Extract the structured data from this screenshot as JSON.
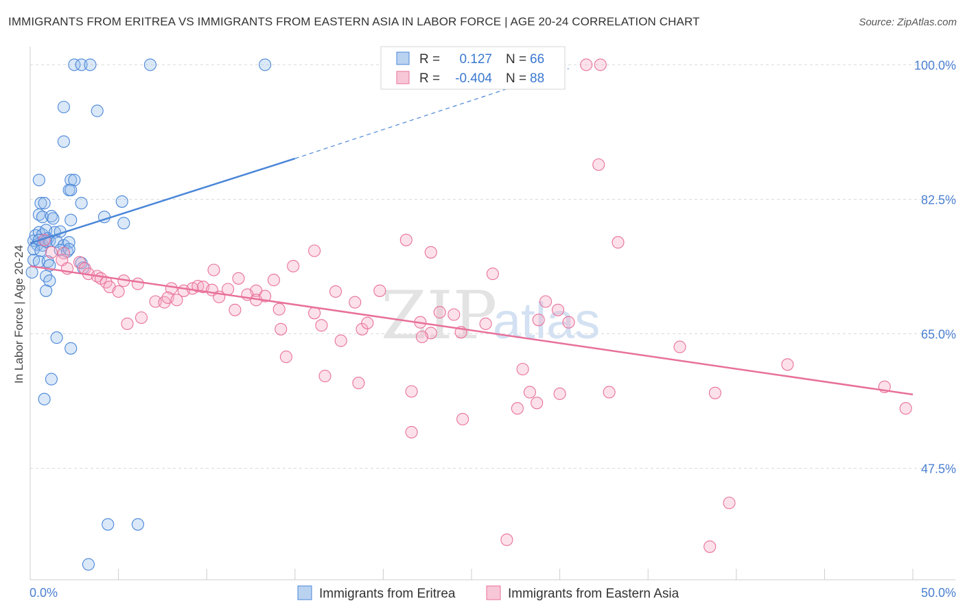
{
  "title": "IMMIGRANTS FROM ERITREA VS IMMIGRANTS FROM EASTERN ASIA IN LABOR FORCE | AGE 20-24 CORRELATION CHART",
  "source": "Source: ZipAtlas.com",
  "watermark": {
    "zip": "ZIP",
    "atlas": "atlas"
  },
  "legend_box": {
    "rows": [
      {
        "r_label": "R =",
        "r_value": "0.127",
        "n_label": "N =",
        "n_value": "66",
        "color": "#4a86d8"
      },
      {
        "r_label": "R =",
        "r_value": "-0.404",
        "n_label": "N =",
        "n_value": "88",
        "color": "#e8709a"
      }
    ]
  },
  "chart_data": {
    "type": "scatter",
    "ylabel": "In Labor Force | Age 20-24",
    "xlabel": "",
    "xlim": [
      0,
      50
    ],
    "ylim": [
      33,
      102
    ],
    "x_tick_labels": [
      {
        "value": 0,
        "label": "0.0%"
      },
      {
        "value": 50,
        "label": "50.0%"
      }
    ],
    "y_tick_labels": [
      {
        "value": 100,
        "label": "100.0%"
      },
      {
        "value": 82.5,
        "label": "82.5%"
      },
      {
        "value": 65,
        "label": "65.0%"
      },
      {
        "value": 47.5,
        "label": "47.5%"
      }
    ],
    "colors": {
      "eritrea": "#4a86d8",
      "eastern_asia": "#e8709a",
      "tick_label": "#4a7fd0"
    },
    "series": [
      {
        "name": "Immigrants from Eritrea",
        "color": "#4a86d8",
        "trend": {
          "x_start": 0,
          "y_start": 76.8,
          "x_end": 15,
          "y_end": 87.8,
          "dash_x_end": 30.5,
          "dash_y_end": 99.5
        },
        "points": [
          [
            2.5,
            100
          ],
          [
            2.9,
            100
          ],
          [
            3.4,
            100
          ],
          [
            6.8,
            100
          ],
          [
            13.3,
            100
          ],
          [
            1.9,
            94.5
          ],
          [
            3.8,
            94
          ],
          [
            1.9,
            90
          ],
          [
            0.5,
            85
          ],
          [
            2.3,
            85
          ],
          [
            2.5,
            85
          ],
          [
            2.2,
            83.7
          ],
          [
            2.3,
            83.7
          ],
          [
            0.6,
            82
          ],
          [
            0.8,
            82
          ],
          [
            2.9,
            82
          ],
          [
            5.2,
            82.2
          ],
          [
            0.5,
            80.5
          ],
          [
            0.7,
            80.2
          ],
          [
            1.2,
            80.3
          ],
          [
            1.3,
            80
          ],
          [
            2.3,
            79.8
          ],
          [
            4.2,
            80.2
          ],
          [
            5.3,
            79.4
          ],
          [
            0.3,
            77.8
          ],
          [
            0.5,
            78.2
          ],
          [
            0.7,
            77.9
          ],
          [
            0.9,
            78.5
          ],
          [
            1.0,
            77.4
          ],
          [
            1.4,
            78.2
          ],
          [
            1.7,
            78.3
          ],
          [
            0.2,
            77.1
          ],
          [
            0.4,
            76.6
          ],
          [
            0.5,
            77.2
          ],
          [
            0.7,
            76.5
          ],
          [
            0.9,
            77
          ],
          [
            1.1,
            77.1
          ],
          [
            1.5,
            77
          ],
          [
            1.9,
            76.5
          ],
          [
            2.2,
            76.9
          ],
          [
            0.2,
            76.0
          ],
          [
            0.6,
            75.8
          ],
          [
            1.7,
            75.9
          ],
          [
            2.1,
            75.7
          ],
          [
            2.2,
            76.0
          ],
          [
            0.2,
            74.6
          ],
          [
            0.5,
            74.4
          ],
          [
            1.0,
            74.4
          ],
          [
            1.1,
            73.9
          ],
          [
            2.9,
            74.2
          ],
          [
            3.0,
            73.6
          ],
          [
            0.1,
            73.0
          ],
          [
            0.9,
            72.5
          ],
          [
            1.1,
            71.9
          ],
          [
            0.9,
            70.6
          ],
          [
            1.5,
            64.5
          ],
          [
            2.3,
            63.1
          ],
          [
            1.2,
            59.1
          ],
          [
            0.8,
            56.5
          ],
          [
            4.4,
            40.2
          ],
          [
            6.1,
            40.2
          ],
          [
            3.3,
            35
          ]
        ]
      },
      {
        "name": "Immigrants from Eastern Asia",
        "color": "#e8709a",
        "trend": {
          "x_start": 0,
          "y_start": 73.8,
          "x_end": 50,
          "y_end": 57.1
        },
        "points": [
          [
            31.5,
            100
          ],
          [
            32.3,
            100
          ],
          [
            32.2,
            87
          ],
          [
            21.3,
            77.2
          ],
          [
            33.3,
            76.9
          ],
          [
            16.1,
            75.8
          ],
          [
            22.7,
            75.6
          ],
          [
            0.8,
            77.2
          ],
          [
            1.2,
            75.6
          ],
          [
            1.9,
            75.5
          ],
          [
            1.8,
            74.6
          ],
          [
            2.8,
            74.3
          ],
          [
            2.1,
            73.5
          ],
          [
            3.1,
            73.5
          ],
          [
            14.9,
            73.8
          ],
          [
            3.3,
            72.8
          ],
          [
            3.8,
            72.5
          ],
          [
            4.0,
            72.2
          ],
          [
            4.3,
            71.7
          ],
          [
            4.5,
            71.1
          ],
          [
            5.3,
            71.9
          ],
          [
            6.1,
            71.5
          ],
          [
            10.4,
            73.3
          ],
          [
            11.8,
            72.2
          ],
          [
            13.8,
            72
          ],
          [
            26.2,
            72.8
          ],
          [
            5.0,
            70.5
          ],
          [
            8.0,
            70.9
          ],
          [
            8.7,
            70.6
          ],
          [
            9.2,
            70.9
          ],
          [
            9.5,
            71.2
          ],
          [
            9.8,
            71.1
          ],
          [
            10.3,
            70.7
          ],
          [
            11.2,
            70.8
          ],
          [
            12.8,
            70.6
          ],
          [
            17.3,
            70.5
          ],
          [
            19.8,
            70.6
          ],
          [
            7.1,
            69.2
          ],
          [
            7.6,
            69.1
          ],
          [
            7.8,
            69.7
          ],
          [
            8.3,
            69.4
          ],
          [
            10.7,
            69.8
          ],
          [
            12.3,
            70.1
          ],
          [
            12.8,
            69.4
          ],
          [
            13.3,
            69.9
          ],
          [
            18.4,
            69.1
          ],
          [
            29.2,
            69.2
          ],
          [
            11.6,
            68.1
          ],
          [
            14.1,
            68.2
          ],
          [
            16.1,
            67.7
          ],
          [
            23.2,
            67.8
          ],
          [
            24.0,
            67.5
          ],
          [
            29.9,
            68.1
          ],
          [
            5.5,
            66.3
          ],
          [
            6.3,
            67.1
          ],
          [
            16.5,
            66.1
          ],
          [
            18.8,
            65.6
          ],
          [
            19.1,
            66.4
          ],
          [
            22.1,
            66.5
          ],
          [
            28.8,
            66.8
          ],
          [
            30.5,
            66.5
          ],
          [
            14.2,
            65.6
          ],
          [
            22.7,
            65.1
          ],
          [
            24.4,
            65.2
          ],
          [
            25.8,
            66.3
          ],
          [
            17.6,
            64.1
          ],
          [
            22.2,
            64.6
          ],
          [
            14.5,
            62.0
          ],
          [
            36.8,
            63.3
          ],
          [
            42.9,
            61.0
          ],
          [
            16.7,
            59.5
          ],
          [
            18.6,
            58.6
          ],
          [
            27.9,
            60.4
          ],
          [
            21.6,
            57.5
          ],
          [
            28.3,
            57.4
          ],
          [
            30.0,
            57.2
          ],
          [
            32.8,
            57.4
          ],
          [
            38.8,
            57.3
          ],
          [
            48.4,
            58.1
          ],
          [
            27.6,
            55.3
          ],
          [
            28.7,
            56.0
          ],
          [
            49.6,
            55.3
          ],
          [
            24.5,
            53.9
          ],
          [
            21.6,
            52.2
          ],
          [
            39.6,
            43.0
          ],
          [
            27.0,
            38.2
          ],
          [
            38.5,
            37.3
          ]
        ]
      }
    ]
  }
}
